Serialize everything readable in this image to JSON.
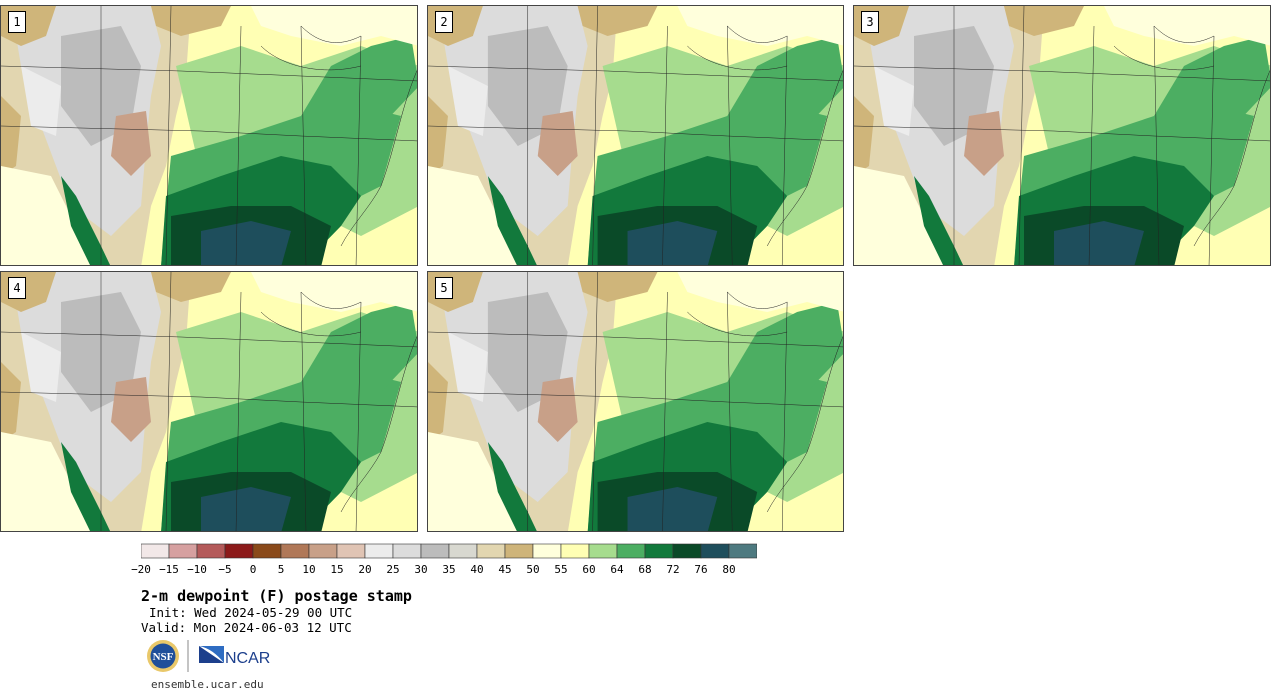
{
  "panels": [
    {
      "label": "1"
    },
    {
      "label": "2"
    },
    {
      "label": "3"
    },
    {
      "label": "4"
    },
    {
      "label": "5"
    }
  ],
  "colorbar": {
    "colors": [
      "#f2e8e8",
      "#d6a0a0",
      "#b45a5a",
      "#8c1a1a",
      "#8a4a1a",
      "#b07858",
      "#c8a088",
      "#e0c4b4",
      "#ececec",
      "#dcdcdc",
      "#bcbcbc",
      "#d8d8d0",
      "#e2d6b0",
      "#ceb47a",
      "#ffffdc",
      "#ffffb4",
      "#a6dc8e",
      "#4cae62",
      "#12793c",
      "#0a4a28",
      "#1e4e5c",
      "#4e7a80"
    ],
    "ticks": [
      "−20",
      "−15",
      "−10",
      "−5",
      "0",
      "5",
      "10",
      "15",
      "20",
      "25",
      "30",
      "35",
      "40",
      "45",
      "50",
      "55",
      "60",
      "64",
      "68",
      "72",
      "76",
      "80"
    ]
  },
  "title": "2-m dewpoint (F) postage stamp",
  "init": "Init: Wed 2024-05-29 00 UTC",
  "valid": "Valid: Mon 2024-06-03 12 UTC",
  "logos": {
    "nsf": "NSF",
    "ncar": "NCAR"
  },
  "site": "ensemble.ucar.edu"
}
